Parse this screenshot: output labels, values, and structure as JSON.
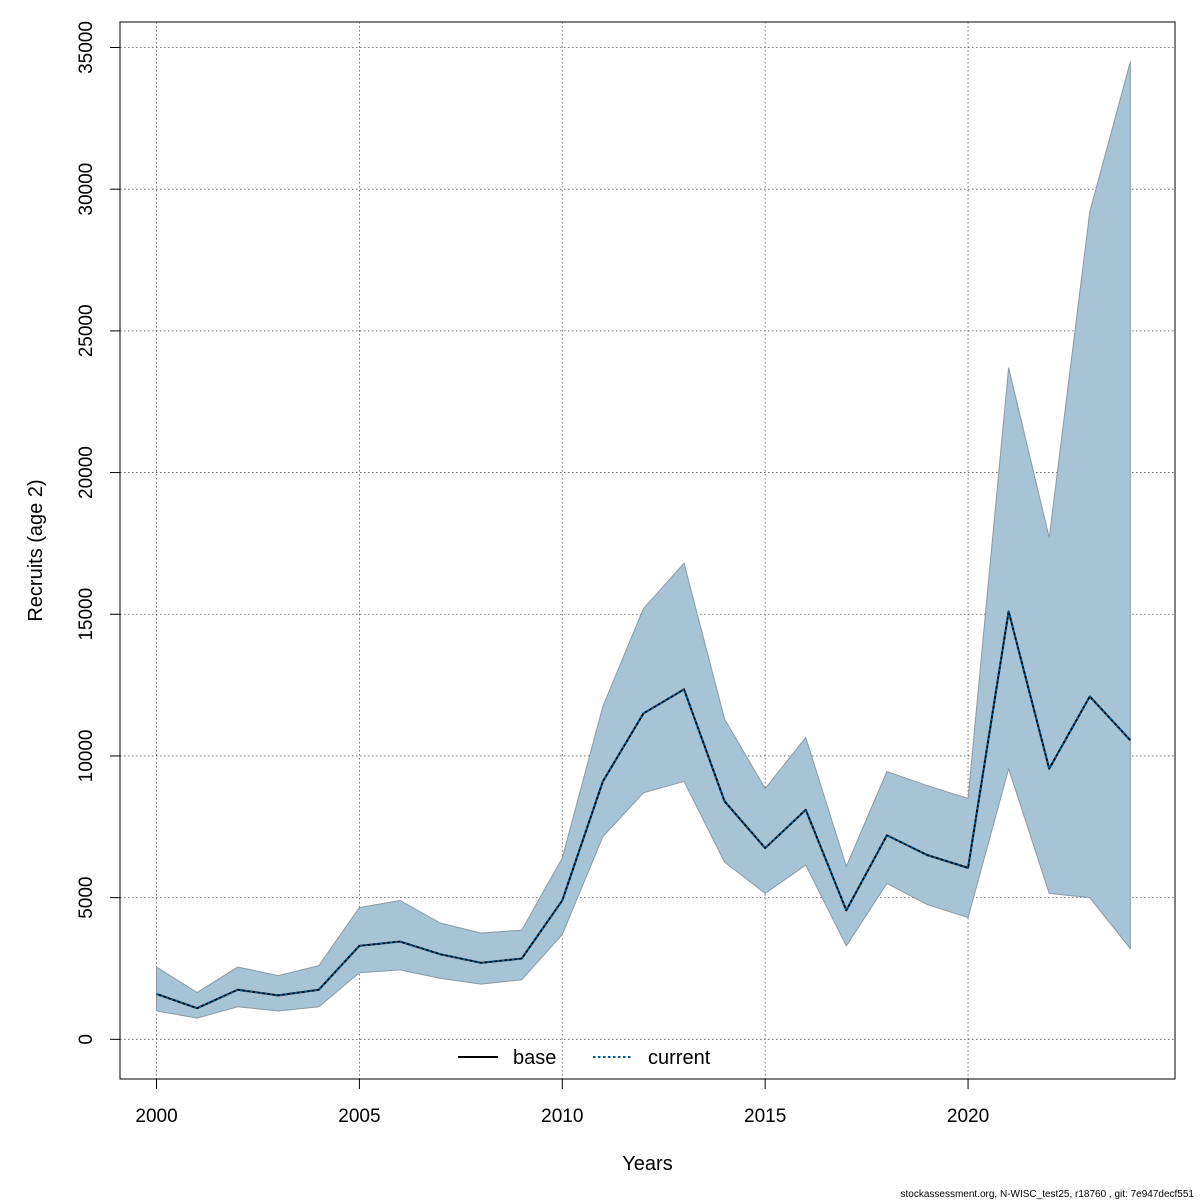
{
  "chart_data": {
    "type": "line",
    "xlabel": "Years",
    "ylabel": "Recruits (age 2)",
    "xlim": [
      1999.1,
      2025.1
    ],
    "ylim": [
      -1400,
      35900
    ],
    "x_ticks": [
      2000,
      2005,
      2010,
      2015,
      2020
    ],
    "x_tick_labels": [
      "2000",
      "2005",
      "2010",
      "2015",
      "2020"
    ],
    "y_ticks": [
      0,
      5000,
      10000,
      15000,
      20000,
      25000,
      30000,
      35000
    ],
    "y_tick_labels": [
      "0",
      "5000",
      "10000",
      "15000",
      "20000",
      "25000",
      "30000",
      "35000"
    ],
    "grid": true,
    "x": [
      2000,
      2001,
      2002,
      2003,
      2004,
      2005,
      2006,
      2007,
      2008,
      2009,
      2010,
      2011,
      2012,
      2013,
      2014,
      2015,
      2016,
      2017,
      2018,
      2019,
      2020,
      2021,
      2022,
      2023,
      2024
    ],
    "series": [
      {
        "name": "base",
        "line_style": "solid",
        "color": "#000000",
        "values": [
          1600,
          1100,
          1750,
          1550,
          1750,
          3300,
          3450,
          3000,
          2700,
          2850,
          4900,
          9100,
          11500,
          12350,
          8400,
          6750,
          8100,
          4550,
          7200,
          6500,
          6050,
          15100,
          9550,
          12100,
          10550
        ]
      },
      {
        "name": "current",
        "line_style": "dotted",
        "color": "#005b96",
        "values": [
          1600,
          1100,
          1750,
          1550,
          1750,
          3300,
          3450,
          3000,
          2700,
          2850,
          4900,
          9100,
          11500,
          12350,
          8400,
          6750,
          8100,
          4550,
          7200,
          6500,
          6050,
          15100,
          9550,
          12100,
          10550
        ]
      }
    ],
    "interval": {
      "color": "#a6c4d5",
      "edge_color": "#8a9aa4",
      "lower": [
        1000,
        750,
        1150,
        1000,
        1150,
        2350,
        2450,
        2150,
        1950,
        2100,
        3700,
        7150,
        8700,
        9100,
        6250,
        5150,
        6150,
        3300,
        5500,
        4750,
        4300,
        9550,
        5150,
        5000,
        3200
      ],
      "upper": [
        2550,
        1650,
        2550,
        2250,
        2600,
        4650,
        4900,
        4100,
        3750,
        3850,
        6400,
        11750,
        15200,
        16800,
        11300,
        8850,
        10650,
        6100,
        9450,
        8950,
        8500,
        23700,
        17700,
        29200,
        34500
      ]
    },
    "legend": {
      "placement": "bottom-center",
      "entries": [
        "base",
        "current"
      ]
    }
  },
  "footer": {
    "text": "stockassessment.org, N-WISC_test25, r18760 , git: 7e947decf551"
  }
}
